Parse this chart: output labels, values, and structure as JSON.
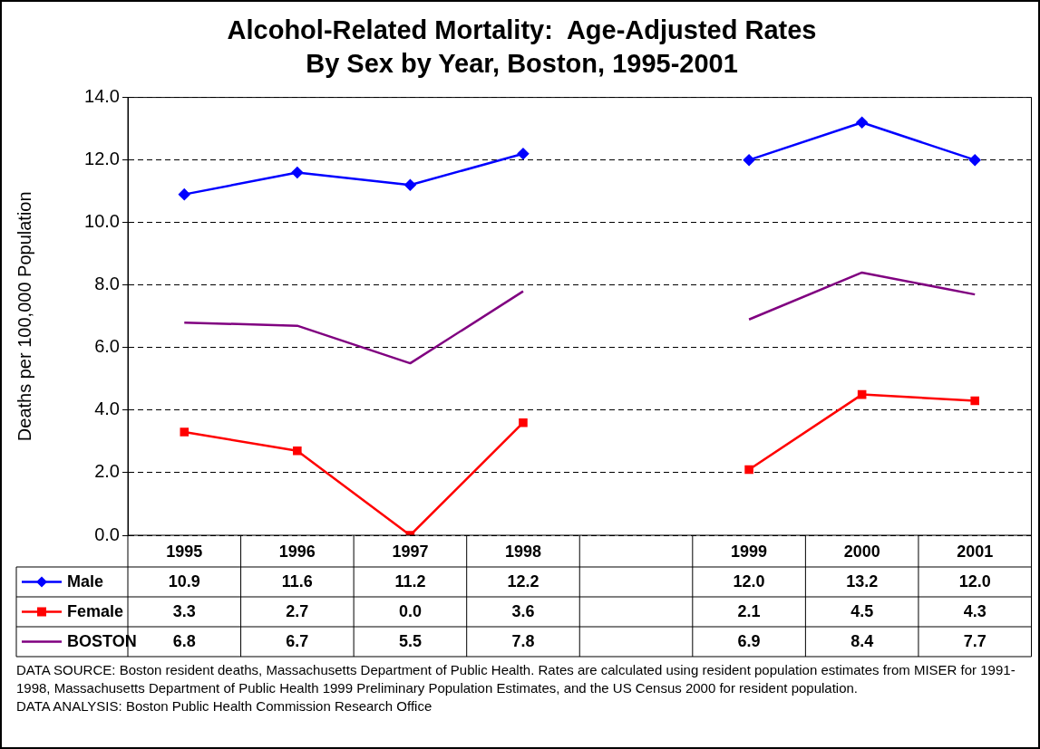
{
  "chart_data": {
    "type": "line",
    "title": "Alcohol-Related Mortality:  Age-Adjusted Rates",
    "subtitle": "By Sex by Year, Boston, 1995-2001",
    "ylabel": "Deaths per 100,000 Population",
    "categories": [
      "1995",
      "1996",
      "1997",
      "1998",
      null,
      "1999",
      "2000",
      "2001"
    ],
    "series": [
      {
        "name": "Male",
        "color": "#0000ff",
        "marker": "diamond",
        "values": [
          10.9,
          11.6,
          11.2,
          12.2,
          null,
          12.0,
          13.2,
          12.0
        ],
        "value_labels": [
          "10.9",
          "11.6",
          "11.2",
          "12.2",
          null,
          "12.0",
          "13.2",
          "12.0"
        ]
      },
      {
        "name": "Female",
        "color": "#ff0000",
        "marker": "square",
        "values": [
          3.3,
          2.7,
          0.0,
          3.6,
          null,
          2.1,
          4.5,
          4.3
        ],
        "value_labels": [
          "3.3",
          "2.7",
          "0.0",
          "3.6",
          null,
          "2.1",
          "4.5",
          "4.3"
        ]
      },
      {
        "name": "BOSTON",
        "color": "#800080",
        "marker": "none",
        "values": [
          6.8,
          6.7,
          5.5,
          7.8,
          null,
          6.9,
          8.4,
          7.7
        ],
        "value_labels": [
          "6.8",
          "6.7",
          "5.5",
          "7.8",
          null,
          "6.9",
          "8.4",
          "7.7"
        ]
      }
    ],
    "ylim": [
      0,
      14
    ],
    "yticks": [
      {
        "value": 0,
        "label": "0.0"
      },
      {
        "value": 2,
        "label": "2.0"
      },
      {
        "value": 4,
        "label": "4.0"
      },
      {
        "value": 6,
        "label": "6.0"
      },
      {
        "value": 8,
        "label": "8.0"
      },
      {
        "value": 10,
        "label": "10.0"
      },
      {
        "value": 12,
        "label": "12.0"
      },
      {
        "value": 14,
        "label": "14.0"
      }
    ],
    "grid": "y",
    "line_style": "solid",
    "legend": "bottom left",
    "annotations": [
      "DATA SOURCE:  Boston resident deaths, Massachusetts Department of Public Health.  Rates are calculated using resident population estimates from MISER for 1991-1998, Massachusetts Department of Public Health 1999 Preliminary Population Estimates, and the US Census 2000 for resident population.",
      "DATA ANALYSIS:  Boston Public Health Commission Research Office"
    ]
  }
}
